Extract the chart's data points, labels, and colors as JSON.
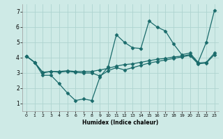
{
  "xlabel": "Humidex (Indice chaleur)",
  "background_color": "#ceeae6",
  "grid_color": "#aed4d0",
  "line_color": "#1a6b6b",
  "xlim": [
    -0.5,
    23.5
  ],
  "ylim": [
    0.5,
    7.5
  ],
  "xticks": [
    0,
    1,
    2,
    3,
    4,
    5,
    6,
    7,
    8,
    9,
    10,
    11,
    12,
    13,
    14,
    15,
    16,
    17,
    18,
    19,
    20,
    21,
    22,
    23
  ],
  "yticks": [
    1,
    2,
    3,
    4,
    5,
    6,
    7
  ],
  "line1_x": [
    0,
    1,
    2,
    3,
    4,
    5,
    6,
    7,
    8,
    9,
    10,
    11,
    12,
    13,
    14,
    15,
    16,
    17,
    18,
    19,
    20,
    21,
    22,
    23
  ],
  "line1_y": [
    4.1,
    3.7,
    2.85,
    2.85,
    2.3,
    1.7,
    1.2,
    1.3,
    1.2,
    2.75,
    3.4,
    5.5,
    5.0,
    4.65,
    4.6,
    6.4,
    6.0,
    5.75,
    4.9,
    4.2,
    4.3,
    3.7,
    5.0,
    7.1
  ],
  "line2_x": [
    0,
    1,
    2,
    3,
    4,
    5,
    6,
    7,
    8,
    9,
    10,
    11,
    12,
    13,
    14,
    15,
    16,
    17,
    18,
    19,
    20,
    21,
    22,
    23
  ],
  "line2_y": [
    4.1,
    3.7,
    3.05,
    3.1,
    3.1,
    3.15,
    3.1,
    3.1,
    3.1,
    3.2,
    3.3,
    3.45,
    3.55,
    3.6,
    3.7,
    3.8,
    3.9,
    3.95,
    4.05,
    4.1,
    4.2,
    3.65,
    3.7,
    4.3
  ],
  "line3_x": [
    0,
    1,
    2,
    3,
    4,
    5,
    6,
    7,
    8,
    9,
    10,
    11,
    12,
    13,
    14,
    15,
    16,
    17,
    18,
    19,
    20,
    21,
    22,
    23
  ],
  "line3_y": [
    4.1,
    3.7,
    3.0,
    3.1,
    3.05,
    3.1,
    3.05,
    3.0,
    3.0,
    2.8,
    3.15,
    3.35,
    3.2,
    3.35,
    3.5,
    3.65,
    3.75,
    3.85,
    3.95,
    4.05,
    4.15,
    3.6,
    3.65,
    4.2
  ]
}
